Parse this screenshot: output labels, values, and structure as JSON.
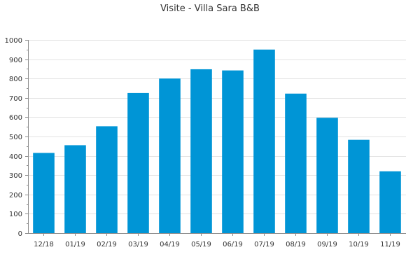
{
  "chart_data": {
    "type": "bar",
    "title": "Visite - Villa Sara B&B",
    "categories": [
      "12/18",
      "01/19",
      "02/19",
      "03/19",
      "04/19",
      "05/19",
      "06/19",
      "07/19",
      "08/19",
      "09/19",
      "10/19",
      "11/19"
    ],
    "values": [
      415,
      455,
      553,
      725,
      800,
      848,
      842,
      950,
      722,
      597,
      483,
      320
    ],
    "ylim": [
      0,
      1000
    ],
    "yticks": [
      0,
      100,
      200,
      300,
      400,
      500,
      600,
      700,
      800,
      900,
      1000
    ],
    "grid": true,
    "bar_color": "#0095d6"
  }
}
